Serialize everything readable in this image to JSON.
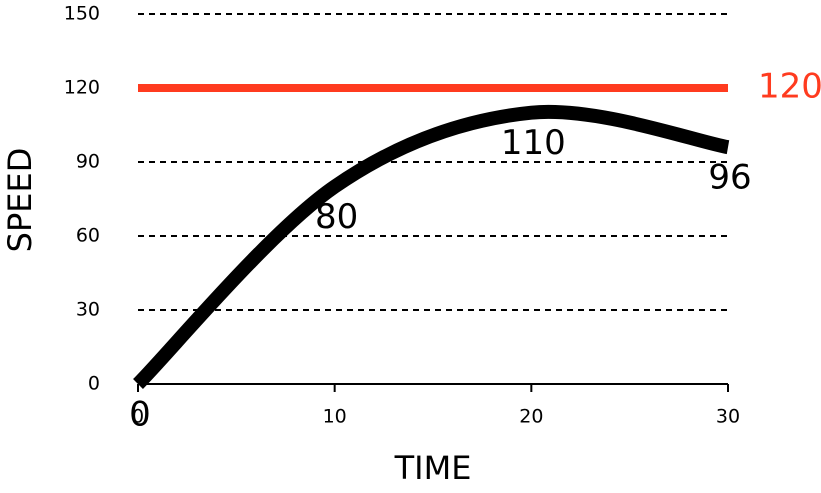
{
  "chart_data": {
    "type": "line",
    "x_label": "TIME",
    "y_label": "SPEED",
    "x": [
      0,
      10,
      20,
      30
    ],
    "series": [
      {
        "color": "#000000",
        "values": [
          0,
          80,
          110,
          96
        ]
      }
    ],
    "xlim": [
      0,
      30
    ],
    "xticks": [
      0,
      10,
      20,
      30
    ],
    "ylim": [
      0,
      150
    ],
    "yticks": [
      0,
      30,
      60,
      90,
      120,
      150
    ],
    "grid": true,
    "reference_line": {
      "value": 120,
      "color": "#ff3b1f"
    }
  }
}
